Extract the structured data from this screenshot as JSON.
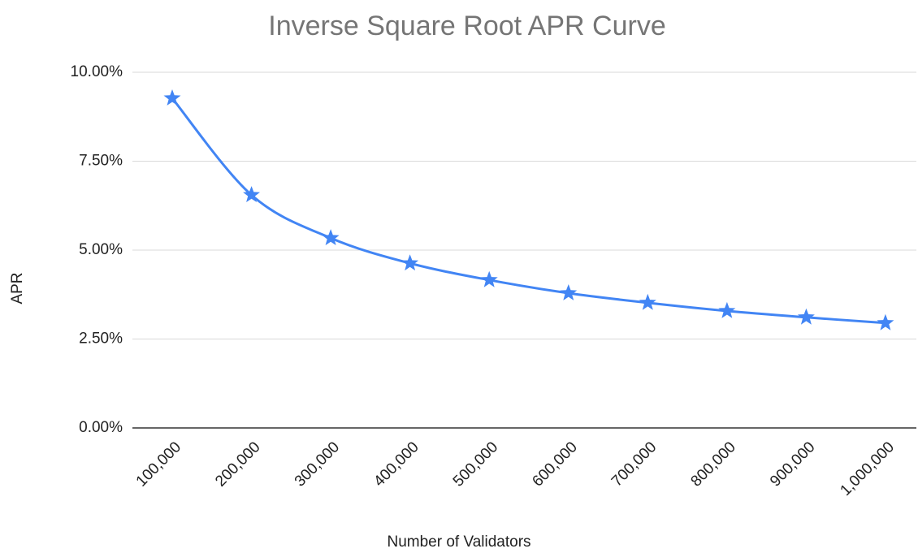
{
  "chart_data": {
    "type": "line",
    "title": "Inverse Square Root APR Curve",
    "x_label": "Number of Validators",
    "y_label": "APR",
    "categories": [
      "100,000",
      "200,000",
      "300,000",
      "400,000",
      "500,000",
      "600,000",
      "700,000",
      "800,000",
      "900,000",
      "1,000,000"
    ],
    "series": [
      {
        "name": "APR",
        "color": "#4285f4",
        "values": [
          9.27,
          6.55,
          5.34,
          4.63,
          4.16,
          3.79,
          3.52,
          3.29,
          3.11,
          2.95
        ]
      }
    ],
    "ylim": [
      0,
      10
    ],
    "yticks": [
      {
        "value": 0,
        "label": "0.00%"
      },
      {
        "value": 2.5,
        "label": "2.50%"
      },
      {
        "value": 5,
        "label": "5.00%"
      },
      {
        "value": 7.5,
        "label": "7.50%"
      },
      {
        "value": 10,
        "label": "10.00%"
      }
    ],
    "grid": true,
    "marker": "star"
  }
}
